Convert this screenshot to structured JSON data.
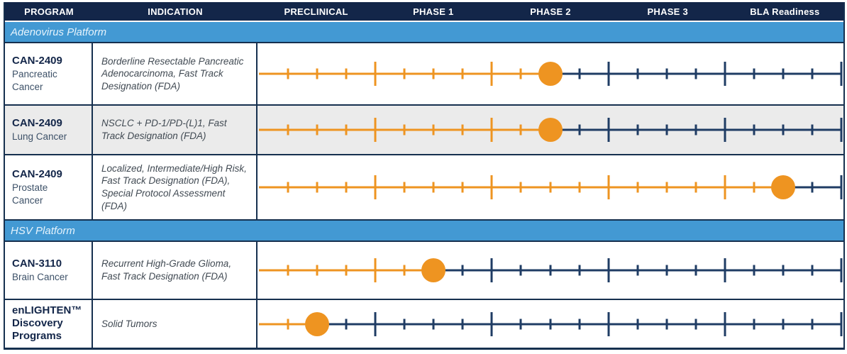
{
  "colors": {
    "navy": "#132649",
    "timeline_navy": "#1f3c64",
    "blue": "#4399d3",
    "band_text": "#e6f3fc",
    "orange": "#ee9421",
    "gray_row": "#ebebeb",
    "border": "#16304f",
    "program_sub_text": "#3d5168",
    "indication_text": "#414a53"
  },
  "header": {
    "columns": [
      "PROGRAM",
      "INDICATION",
      "PRECLINICAL",
      "PHASE 1",
      "PHASE 2",
      "PHASE 3",
      "BLA Readiness"
    ]
  },
  "sections": [
    {
      "label": "Adenovirus Platform"
    },
    {
      "label": "HSV Platform"
    }
  ],
  "rows": [
    {
      "program_name": "CAN-2409",
      "program_sub": "Pancreatic Cancer",
      "indication": "Borderline Resectable Pancreatic Adenocarcinoma, Fast Track Designation (FDA)",
      "progress": 2.5
    },
    {
      "program_name": "CAN-2409",
      "program_sub": "Lung Cancer",
      "indication": "NSCLC + PD-1/PD-(L)1, Fast Track Designation (FDA)",
      "progress": 2.5
    },
    {
      "program_name": "CAN-2409",
      "program_sub": "Prostate Cancer",
      "indication": "Localized, Intermediate/High Risk, Fast Track Designation (FDA), Special Protocol Assessment (FDA)",
      "progress": 4.5
    },
    {
      "program_name": "CAN-3110",
      "program_sub": "Brain Cancer",
      "indication": "Recurrent High-Grade Glioma, Fast Track Designation (FDA)",
      "progress": 1.5
    },
    {
      "program_name": "enLIGHTEN™ Discovery Programs",
      "program_sub": "",
      "indication": "Solid Tumors",
      "progress": 0.5
    }
  ],
  "chart_data": {
    "type": "table",
    "phase_columns": [
      "PRECLINICAL",
      "PHASE 1",
      "PHASE 2",
      "PHASE 3",
      "BLA Readiness"
    ],
    "axis_note": "progress in phase-column units 0-5; circle marker sits at midpoint of current phase; small ticks every quarter phase, tall ticks at phase boundaries",
    "rows": [
      {
        "program": "CAN-2409 Pancreatic Cancer",
        "platform": "Adenovirus Platform",
        "indication": "Borderline Resectable Pancreatic Adenocarcinoma, Fast Track Designation (FDA)",
        "current_stage": "Phase 2",
        "progress": 2.5
      },
      {
        "program": "CAN-2409 Lung Cancer",
        "platform": "Adenovirus Platform",
        "indication": "NSCLC + PD-1/PD-(L)1, Fast Track Designation (FDA)",
        "current_stage": "Phase 2",
        "progress": 2.5
      },
      {
        "program": "CAN-2409 Prostate Cancer",
        "platform": "Adenovirus Platform",
        "indication": "Localized, Intermediate/High Risk, Fast Track Designation (FDA), Special Protocol Assessment (FDA)",
        "current_stage": "BLA Readiness",
        "progress": 4.5
      },
      {
        "program": "CAN-3110 Brain Cancer",
        "platform": "HSV Platform",
        "indication": "Recurrent High-Grade Glioma, Fast Track Designation (FDA)",
        "current_stage": "Phase 1",
        "progress": 1.5
      },
      {
        "program": "enLIGHTEN™ Discovery Programs",
        "platform": "HSV Platform",
        "indication": "Solid Tumors",
        "current_stage": "Preclinical",
        "progress": 0.5
      }
    ]
  }
}
